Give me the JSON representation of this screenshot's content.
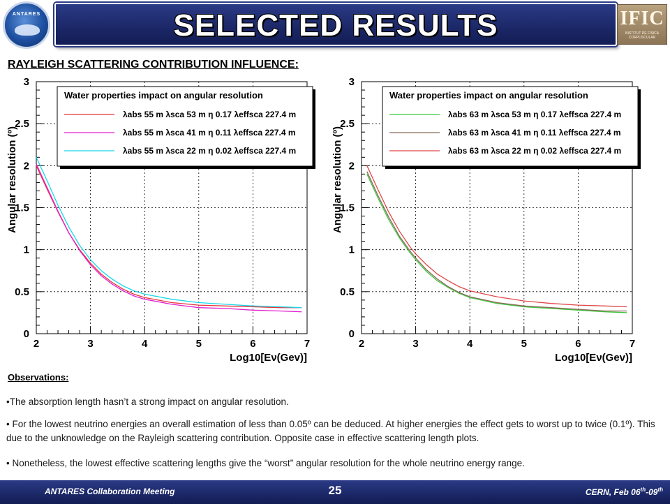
{
  "header": {
    "title": "SELECTED RESULTS",
    "left_logo_text": "ANTARES",
    "right_logo_text": "IFIC",
    "right_logo_sub": "INSTITUT DE FÍSICA CORPUSCULAR"
  },
  "subtitle": "RAYLEIGH SCATTERING CONTRIBUTION INFLUENCE:",
  "chart_data": [
    {
      "type": "line",
      "legend_title": "Water properties impact on angular resolution",
      "ylabel": "Angular resolution (º)",
      "xlabel": "Log10[Eν(Gev)]",
      "xlim": [
        2,
        7
      ],
      "ylim": [
        0,
        3
      ],
      "xticks": [
        "2",
        "3",
        "4",
        "5",
        "6",
        "7"
      ],
      "yticks": [
        "0",
        "0.5",
        "1",
        "1.5",
        "2",
        "2.5",
        "3"
      ],
      "grid": true,
      "legend_position": "top",
      "series": [
        {
          "name": "λabs 55 m λsca 53 m η 0.17 λeffsca 227.4 m",
          "color": "#e8323c",
          "x": [
            2.0,
            2.2,
            2.4,
            2.6,
            2.8,
            3.0,
            3.2,
            3.4,
            3.6,
            3.8,
            4.0,
            4.5,
            5.0,
            5.5,
            6.0,
            6.5,
            6.9
          ],
          "y": [
            2.0,
            1.72,
            1.45,
            1.2,
            1.0,
            0.84,
            0.71,
            0.61,
            0.53,
            0.47,
            0.43,
            0.37,
            0.34,
            0.33,
            0.32,
            0.31,
            0.31
          ]
        },
        {
          "name": "λabs 55 m λsca 41 m η 0.11 λeffsca 227.4 m",
          "color": "#e020d0",
          "x": [
            2.0,
            2.2,
            2.4,
            2.6,
            2.8,
            3.0,
            3.2,
            3.4,
            3.6,
            3.8,
            4.0,
            4.5,
            5.0,
            5.5,
            6.0,
            6.5,
            6.9
          ],
          "y": [
            2.02,
            1.74,
            1.46,
            1.2,
            0.99,
            0.82,
            0.69,
            0.59,
            0.51,
            0.45,
            0.41,
            0.35,
            0.31,
            0.3,
            0.28,
            0.27,
            0.26
          ]
        },
        {
          "name": "λabs 55 m λsca 22 m η 0.02 λeffsca 227.4 m",
          "color": "#18d8e8",
          "x": [
            2.0,
            2.2,
            2.4,
            2.6,
            2.8,
            3.0,
            3.2,
            3.4,
            3.6,
            3.8,
            4.0,
            4.5,
            5.0,
            5.5,
            6.0,
            6.5,
            6.9
          ],
          "y": [
            2.1,
            1.82,
            1.53,
            1.27,
            1.05,
            0.88,
            0.75,
            0.65,
            0.57,
            0.51,
            0.47,
            0.41,
            0.37,
            0.35,
            0.33,
            0.32,
            0.31
          ]
        }
      ]
    },
    {
      "type": "line",
      "legend_title": "Water properties impact on angular resolution",
      "ylabel": "Angular resolution (º)",
      "xlabel": "Log10[Eν(Gev)]",
      "xlim": [
        2,
        7
      ],
      "ylim": [
        0,
        3
      ],
      "xticks": [
        "2",
        "3",
        "4",
        "5",
        "6",
        "7"
      ],
      "yticks": [
        "0",
        "0.5",
        "1",
        "1.5",
        "2",
        "2.5",
        "3"
      ],
      "grid": true,
      "legend_position": "top",
      "series": [
        {
          "name": "λabs 63 m λsca 53 m η 0.17 λeffsca 227.4 m",
          "color": "#3cc83c",
          "x": [
            2.1,
            2.3,
            2.5,
            2.7,
            2.9,
            3.0,
            3.2,
            3.4,
            3.6,
            3.8,
            4.0,
            4.5,
            5.0,
            5.5,
            6.0,
            6.5,
            6.9
          ],
          "y": [
            1.9,
            1.62,
            1.36,
            1.14,
            0.96,
            0.88,
            0.74,
            0.63,
            0.55,
            0.48,
            0.43,
            0.36,
            0.32,
            0.3,
            0.28,
            0.26,
            0.25
          ]
        },
        {
          "name": "λabs 63 m λsca 41 m η 0.11 λeffsca 227.4 m",
          "color": "#8a6a5a",
          "x": [
            2.1,
            2.3,
            2.5,
            2.7,
            2.9,
            3.0,
            3.2,
            3.4,
            3.6,
            3.8,
            4.0,
            4.5,
            5.0,
            5.5,
            6.0,
            6.5,
            6.9
          ],
          "y": [
            1.93,
            1.65,
            1.39,
            1.16,
            0.98,
            0.9,
            0.76,
            0.65,
            0.56,
            0.49,
            0.44,
            0.37,
            0.33,
            0.31,
            0.29,
            0.27,
            0.27
          ]
        },
        {
          "name": "λabs 63 m λsca 22 m η 0.02 λeffsca 227.4 m",
          "color": "#e04848",
          "x": [
            2.1,
            2.3,
            2.5,
            2.7,
            2.9,
            3.0,
            3.2,
            3.4,
            3.6,
            3.8,
            4.0,
            4.5,
            5.0,
            5.5,
            6.0,
            6.5,
            6.9
          ],
          "y": [
            2.0,
            1.72,
            1.45,
            1.22,
            1.03,
            0.95,
            0.82,
            0.71,
            0.63,
            0.56,
            0.51,
            0.44,
            0.39,
            0.36,
            0.34,
            0.33,
            0.32
          ]
        }
      ]
    }
  ],
  "observations": {
    "title": "Observations:",
    "items": [
      "•The absorption length hasn’t a strong impact on angular resolution.",
      "• For the lowest neutrino energies an overall estimation of less than 0.05º can be deduced. At higher energies the effect gets to worst up to twice (0.1º). This due to the unknowledge on the Rayleigh scattering contribution. Opposite case in effective scattering length plots.",
      "• Nonetheless, the lowest effective scattering lengths give the “worst” angular resolution for the whole neutrino energy range."
    ]
  },
  "footer": {
    "left": "ANTARES Collaboration Meeting",
    "page_number": "25",
    "right_prefix": "CERN, Feb 06",
    "right_sup1": "th",
    "right_mid": "-09",
    "right_sup2": "th"
  }
}
